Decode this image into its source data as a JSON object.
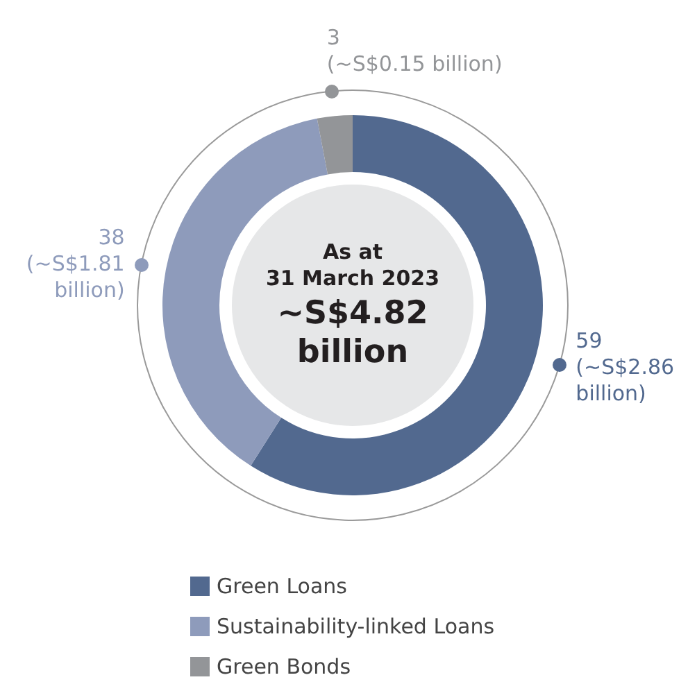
{
  "chart_data": {
    "type": "donut",
    "title": "As at\n31 March 2023",
    "subtitle": "~S$4.82\nbillion",
    "categories": [
      "Green Loans",
      "Sustainability-linked Loans",
      "Green Bonds"
    ],
    "values": [
      59,
      38,
      3
    ],
    "colors": [
      "#52698f",
      "#8e9bbb",
      "#939598"
    ],
    "value_labels": [
      "59\n(~S$2.86\nbillion)",
      "38\n(~S$1.81\nbillion)",
      "3\n(~S$0.15 billion)"
    ],
    "legend": "bottom left"
  }
}
